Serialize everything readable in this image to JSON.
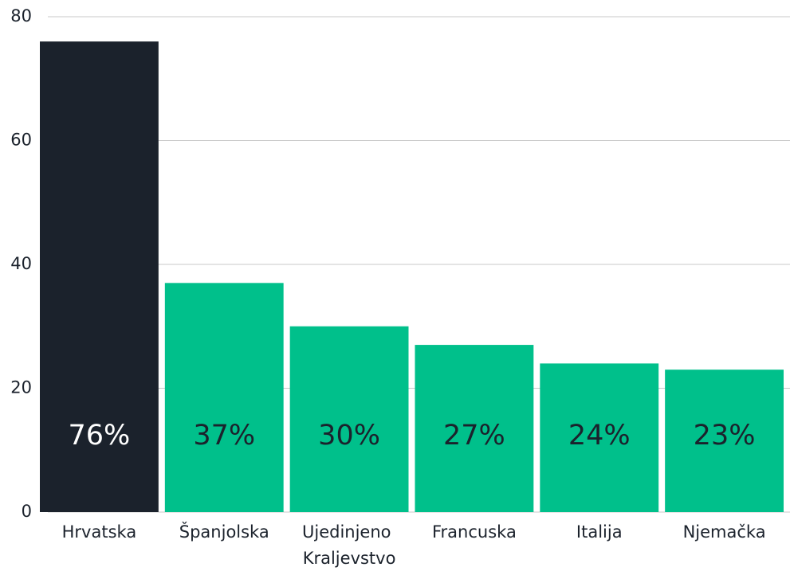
{
  "chart_data": {
    "type": "bar",
    "categories": [
      "Hrvatska",
      "Španjolska",
      "Ujedinjeno Kraljevstvo",
      "Francuska",
      "Italija",
      "Njemačka"
    ],
    "values": [
      76,
      37,
      30,
      27,
      24,
      23
    ],
    "value_labels": [
      "76%",
      "37%",
      "30%",
      "27%",
      "24%",
      "23%"
    ],
    "colors": [
      "#1b222c",
      "#00c08b",
      "#00c08b",
      "#00c08b",
      "#00c08b",
      "#00c08b"
    ],
    "ylim": [
      0,
      80
    ],
    "yticks": [
      0,
      20,
      40,
      60,
      80
    ],
    "grid": true
  }
}
